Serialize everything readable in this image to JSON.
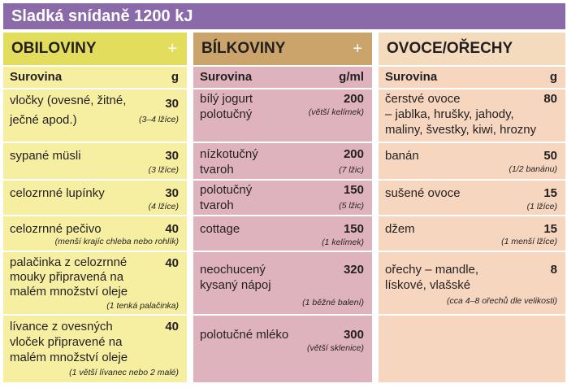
{
  "title": "Sladká snídaně 1200 kJ",
  "plus_sign": "+",
  "columns": [
    {
      "header": "OBILOVINY",
      "ingredient_label": "Surovina",
      "unit": "g",
      "items": [
        {
          "name": "vločky (ovesné, žitné,\nječné apod.)",
          "amount": "30",
          "note": "(3–4 lžíce)"
        },
        {
          "name": "sypané müsli",
          "amount": "30",
          "note": "(3 lžíce)"
        },
        {
          "name": "celozrnné lupínky",
          "amount": "30",
          "note": "(4 lžíce)"
        },
        {
          "name": "celozrnné pečivo",
          "amount": "40",
          "note": "(menší krajíc chleba nebo rohlík)"
        },
        {
          "name": "palačinka z celozrnné\nmouky připravená na\nmalém množství oleje",
          "amount": "40",
          "note": "(1 tenká palačinka)"
        },
        {
          "name": "lívance z ovesných\nvloček připravené na\nmalém množství oleje",
          "amount": "40",
          "note": "(1 větší lívanec nebo 2 malé)"
        }
      ]
    },
    {
      "header": "BÍLKOVINY",
      "ingredient_label": "Surovina",
      "unit": "g/ml",
      "items": [
        {
          "name": "bílý jogurt\npolotučný",
          "amount": "200",
          "note": "(větší kelímek)"
        },
        {
          "name": "nízkotučný\ntvaroh",
          "amount": "200",
          "note": "(7 lžic)"
        },
        {
          "name": "polotučný\ntvaroh",
          "amount": "150",
          "note": "(5 lžic)"
        },
        {
          "name": "cottage",
          "amount": "150",
          "note": "(1 kelímek)"
        },
        {
          "name": "neochucený\nkysaný nápoj",
          "amount": "320",
          "note": "(1 běžné balení)"
        },
        {
          "name": "polotučné mléko",
          "amount": "300",
          "note": "(větší sklenice)"
        }
      ]
    },
    {
      "header": "OVOCE/OŘECHY",
      "ingredient_label": "Surovina",
      "unit": "g",
      "items": [
        {
          "name": "čerstvé ovoce\n– jablka, hrušky, jahody,\nmaliny, švestky, kiwi, hrozny",
          "amount": "80",
          "note": ""
        },
        {
          "name": "banán",
          "amount": "50",
          "note": "(1/2 banánu)"
        },
        {
          "name": "sušené ovoce",
          "amount": "15",
          "note": "(1 lžíce)"
        },
        {
          "name": "džem",
          "amount": "15",
          "note": "(1 menší lžíce)"
        },
        {
          "name": "ořechy – mandle,\nlískové, vlašské",
          "amount": "8",
          "note": "(cca 4–8 ořechů dle velikosti)"
        },
        {
          "name": "",
          "amount": "",
          "note": ""
        }
      ]
    }
  ]
}
